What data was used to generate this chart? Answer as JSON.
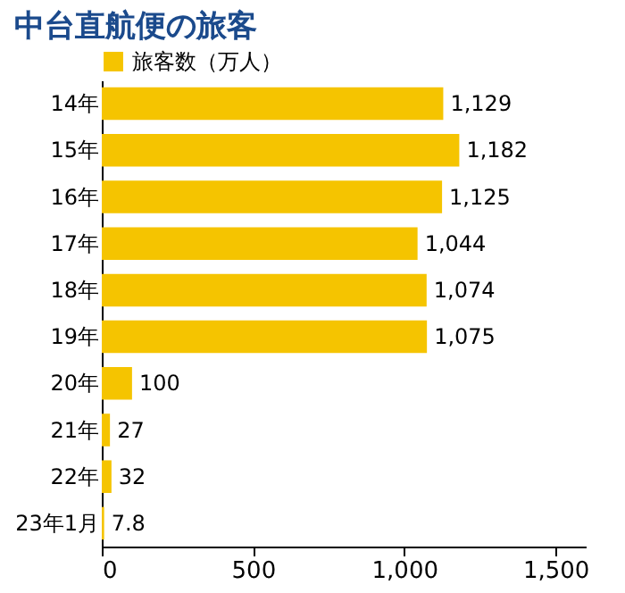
{
  "chart_data": {
    "type": "bar",
    "orientation": "horizontal",
    "title": "中台直航便の旅客",
    "categories": [
      "14年",
      "15年",
      "16年",
      "17年",
      "18年",
      "19年",
      "20年",
      "21年",
      "22年",
      "23年1月"
    ],
    "series": [
      {
        "name": "旅客数（万人）",
        "color": "#f5c400",
        "values": [
          1129,
          1182,
          1125,
          1044,
          1074,
          1075,
          100,
          27,
          32,
          7.8
        ],
        "value_labels": [
          "1,129",
          "1,182",
          "1,125",
          "1,044",
          "1,074",
          "1,075",
          "100",
          "27",
          "32",
          "7.8"
        ]
      }
    ],
    "xlim": [
      0,
      1600
    ],
    "xticks": [
      0,
      500,
      {
        "value": 1000,
        "label": "1,000"
      },
      {
        "value": 1500,
        "label": "1,500"
      }
    ],
    "grid": false,
    "legend": "top left"
  }
}
